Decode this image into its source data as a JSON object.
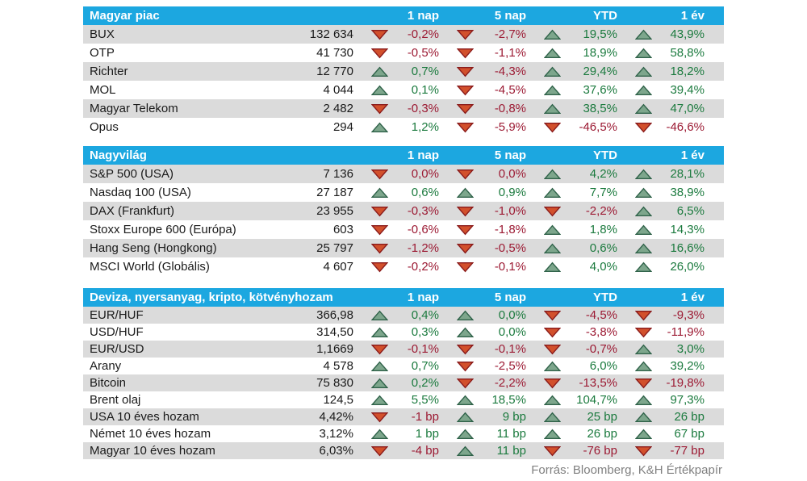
{
  "source": "Forrás: Bloomberg, K&H Értékpapír",
  "colors": {
    "header_bg": "#1CA7E0",
    "header_text": "#ffffff",
    "stripe": "#DBDBDB",
    "up_arrow_fill": "#7DA68C",
    "up_arrow_stroke": "#2F6249",
    "down_arrow_fill": "#D2502C",
    "down_arrow_stroke": "#8A1B1B",
    "positive_text": "#1B7A3E",
    "negative_text": "#9C1A33"
  },
  "chart_data": [
    {
      "type": "table",
      "title": "Magyar piac",
      "columns": [
        "1 nap",
        "5 nap",
        "YTD",
        "1 év"
      ],
      "rows": [
        {
          "name": "BUX",
          "value": "132 634",
          "changes": [
            {
              "dir": "down",
              "text": "-0,2%"
            },
            {
              "dir": "down",
              "text": "-2,7%"
            },
            {
              "dir": "up",
              "text": "19,5%"
            },
            {
              "dir": "up",
              "text": "43,9%"
            }
          ]
        },
        {
          "name": "OTP",
          "value": "41 730",
          "changes": [
            {
              "dir": "down",
              "text": "-0,5%"
            },
            {
              "dir": "down",
              "text": "-1,1%"
            },
            {
              "dir": "up",
              "text": "18,9%"
            },
            {
              "dir": "up",
              "text": "58,8%"
            }
          ]
        },
        {
          "name": "Richter",
          "value": "12 770",
          "changes": [
            {
              "dir": "up",
              "text": "0,7%"
            },
            {
              "dir": "down",
              "text": "-4,3%"
            },
            {
              "dir": "up",
              "text": "29,4%"
            },
            {
              "dir": "up",
              "text": "18,2%"
            }
          ]
        },
        {
          "name": "MOL",
          "value": "4 044",
          "changes": [
            {
              "dir": "up",
              "text": "0,1%"
            },
            {
              "dir": "down",
              "text": "-4,5%"
            },
            {
              "dir": "up",
              "text": "37,6%"
            },
            {
              "dir": "up",
              "text": "39,4%"
            }
          ]
        },
        {
          "name": "Magyar Telekom",
          "value": "2 482",
          "changes": [
            {
              "dir": "down",
              "text": "-0,3%"
            },
            {
              "dir": "down",
              "text": "-0,8%"
            },
            {
              "dir": "up",
              "text": "38,5%"
            },
            {
              "dir": "up",
              "text": "47,0%"
            }
          ]
        },
        {
          "name": "Opus",
          "value": "294",
          "changes": [
            {
              "dir": "up",
              "text": "1,2%"
            },
            {
              "dir": "down",
              "text": "-5,9%"
            },
            {
              "dir": "down",
              "text": "-46,5%"
            },
            {
              "dir": "down",
              "text": "-46,6%"
            }
          ]
        }
      ]
    },
    {
      "type": "table",
      "title": "Nagyvilág",
      "columns": [
        "1 nap",
        "5 nap",
        "YTD",
        "1 év"
      ],
      "rows": [
        {
          "name": "S&P 500 (USA)",
          "value": "7 136",
          "changes": [
            {
              "dir": "down",
              "text": "0,0%"
            },
            {
              "dir": "down",
              "text": "0,0%"
            },
            {
              "dir": "up",
              "text": "4,2%"
            },
            {
              "dir": "up",
              "text": "28,1%"
            }
          ]
        },
        {
          "name": "Nasdaq 100 (USA)",
          "value": "27 187",
          "changes": [
            {
              "dir": "up",
              "text": "0,6%"
            },
            {
              "dir": "up",
              "text": "0,9%"
            },
            {
              "dir": "up",
              "text": "7,7%"
            },
            {
              "dir": "up",
              "text": "38,9%"
            }
          ]
        },
        {
          "name": "DAX (Frankfurt)",
          "value": "23 955",
          "changes": [
            {
              "dir": "down",
              "text": "-0,3%"
            },
            {
              "dir": "down",
              "text": "-1,0%"
            },
            {
              "dir": "down",
              "text": "-2,2%"
            },
            {
              "dir": "up",
              "text": "6,5%"
            }
          ]
        },
        {
          "name": "Stoxx Europe 600 (Európa)",
          "value": "603",
          "changes": [
            {
              "dir": "down",
              "text": "-0,6%"
            },
            {
              "dir": "down",
              "text": "-1,8%"
            },
            {
              "dir": "up",
              "text": "1,8%"
            },
            {
              "dir": "up",
              "text": "14,3%"
            }
          ]
        },
        {
          "name": "Hang Seng (Hongkong)",
          "value": "25 797",
          "changes": [
            {
              "dir": "down",
              "text": "-1,2%"
            },
            {
              "dir": "down",
              "text": "-0,5%"
            },
            {
              "dir": "up",
              "text": "0,6%"
            },
            {
              "dir": "up",
              "text": "16,6%"
            }
          ]
        },
        {
          "name": "MSCI World (Globális)",
          "value": "4 607",
          "changes": [
            {
              "dir": "down",
              "text": "-0,2%"
            },
            {
              "dir": "down",
              "text": "-0,1%"
            },
            {
              "dir": "up",
              "text": "4,0%"
            },
            {
              "dir": "up",
              "text": "26,0%"
            }
          ]
        }
      ]
    },
    {
      "type": "table",
      "title": "Deviza, nyersanyag, kripto, kötvényhozam",
      "columns": [
        "1 nap",
        "5 nap",
        "YTD",
        "1 év"
      ],
      "rows": [
        {
          "name": "EUR/HUF",
          "value": "366,98",
          "changes": [
            {
              "dir": "up",
              "text": "0,4%"
            },
            {
              "dir": "up",
              "text": "0,0%"
            },
            {
              "dir": "down",
              "text": "-4,5%"
            },
            {
              "dir": "down",
              "text": "-9,3%"
            }
          ]
        },
        {
          "name": "USD/HUF",
          "value": "314,50",
          "changes": [
            {
              "dir": "up",
              "text": "0,3%"
            },
            {
              "dir": "up",
              "text": "0,0%"
            },
            {
              "dir": "down",
              "text": "-3,8%"
            },
            {
              "dir": "down",
              "text": "-11,9%"
            }
          ]
        },
        {
          "name": "EUR/USD",
          "value": "1,1669",
          "changes": [
            {
              "dir": "down",
              "text": "-0,1%"
            },
            {
              "dir": "down",
              "text": "-0,1%"
            },
            {
              "dir": "down",
              "text": "-0,7%"
            },
            {
              "dir": "up",
              "text": "3,0%"
            }
          ]
        },
        {
          "name": "Arany",
          "value": "4 578",
          "changes": [
            {
              "dir": "up",
              "text": "0,7%"
            },
            {
              "dir": "down",
              "text": "-2,5%"
            },
            {
              "dir": "up",
              "text": "6,0%"
            },
            {
              "dir": "up",
              "text": "39,2%"
            }
          ]
        },
        {
          "name": "Bitcoin",
          "value": "75 830",
          "changes": [
            {
              "dir": "up",
              "text": "0,2%"
            },
            {
              "dir": "down",
              "text": "-2,2%"
            },
            {
              "dir": "down",
              "text": "-13,5%"
            },
            {
              "dir": "down",
              "text": "-19,8%"
            }
          ]
        },
        {
          "name": "Brent olaj",
          "value": "124,5",
          "changes": [
            {
              "dir": "up",
              "text": "5,5%"
            },
            {
              "dir": "up",
              "text": "18,5%"
            },
            {
              "dir": "up",
              "text": "104,7%"
            },
            {
              "dir": "up",
              "text": "97,3%"
            }
          ]
        },
        {
          "name": "USA 10 éves hozam",
          "value": "4,42%",
          "changes": [
            {
              "dir": "down",
              "text": "-1 bp"
            },
            {
              "dir": "up",
              "text": "9 bp"
            },
            {
              "dir": "up",
              "text": "25 bp"
            },
            {
              "dir": "up",
              "text": "26 bp"
            }
          ]
        },
        {
          "name": "Német 10 éves hozam",
          "value": "3,12%",
          "changes": [
            {
              "dir": "up",
              "text": "1 bp"
            },
            {
              "dir": "up",
              "text": "11 bp"
            },
            {
              "dir": "up",
              "text": "26 bp"
            },
            {
              "dir": "up",
              "text": "67 bp"
            }
          ]
        },
        {
          "name": "Magyar 10 éves hozam",
          "value": "6,03%",
          "changes": [
            {
              "dir": "down",
              "text": "-4 bp"
            },
            {
              "dir": "up",
              "text": "11 bp"
            },
            {
              "dir": "down",
              "text": "-76 bp"
            },
            {
              "dir": "down",
              "text": "-77 bp"
            }
          ]
        }
      ]
    }
  ]
}
